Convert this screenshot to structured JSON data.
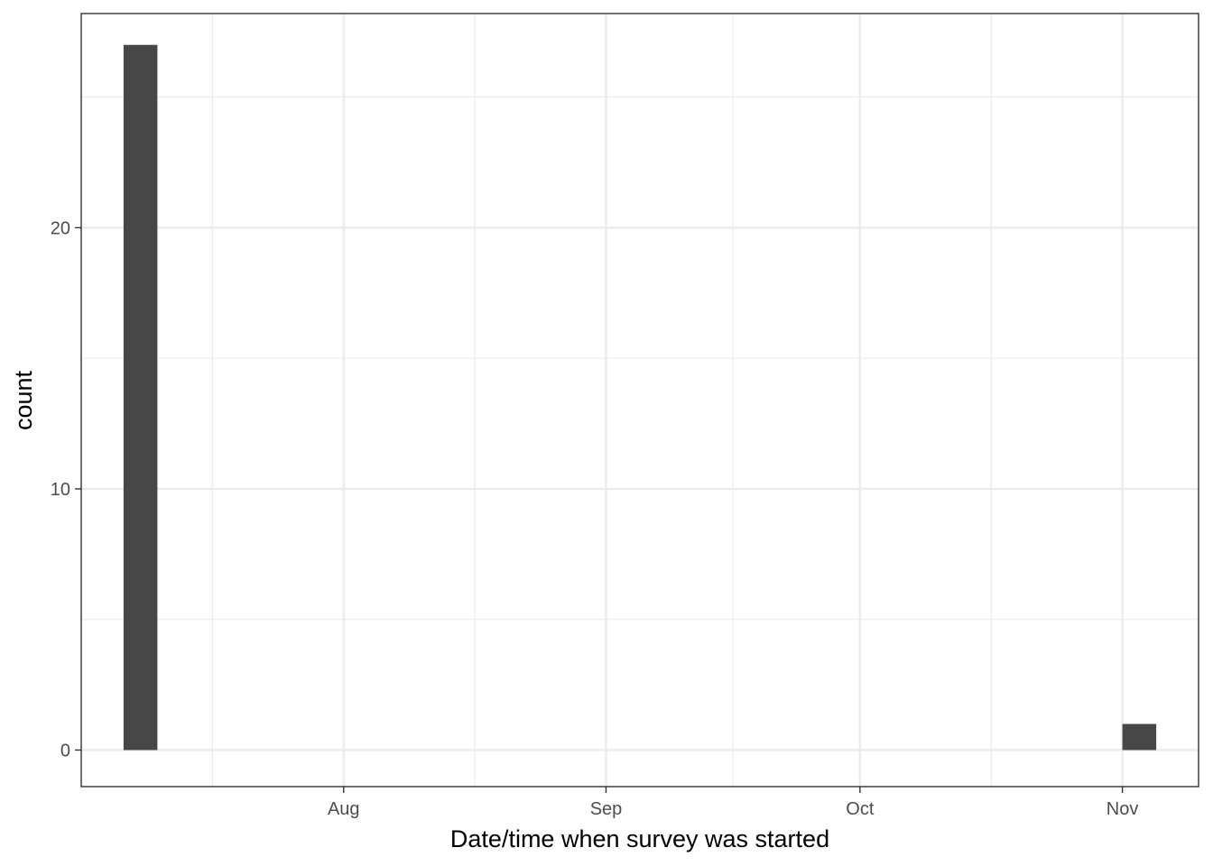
{
  "chart_data": {
    "type": "bar",
    "title": "",
    "xlabel": "Date/time when survey was started",
    "ylabel": "count",
    "x_axis": {
      "kind": "date",
      "range": [
        "2019-07-01",
        "2019-11-10"
      ],
      "ticks": [
        {
          "date": "2019-08-01",
          "label": "Aug"
        },
        {
          "date": "2019-09-01",
          "label": "Sep"
        },
        {
          "date": "2019-10-01",
          "label": "Oct"
        },
        {
          "date": "2019-11-01",
          "label": "Nov"
        }
      ]
    },
    "y_axis": {
      "range": [
        -1.4,
        28.2
      ],
      "ticks": [
        0,
        10,
        20
      ]
    },
    "bins": [
      {
        "start": "2019-07-06",
        "end": "2019-07-10",
        "value": 27
      },
      {
        "start": "2019-11-01",
        "end": "2019-11-05",
        "value": 1
      }
    ],
    "grid": true,
    "legend": "none",
    "colors": {
      "bar": "#474747",
      "grid": "#ebebeb",
      "panel_border": "#333333",
      "tick_text": "#4d4d4d",
      "title_text": "#000000"
    }
  }
}
